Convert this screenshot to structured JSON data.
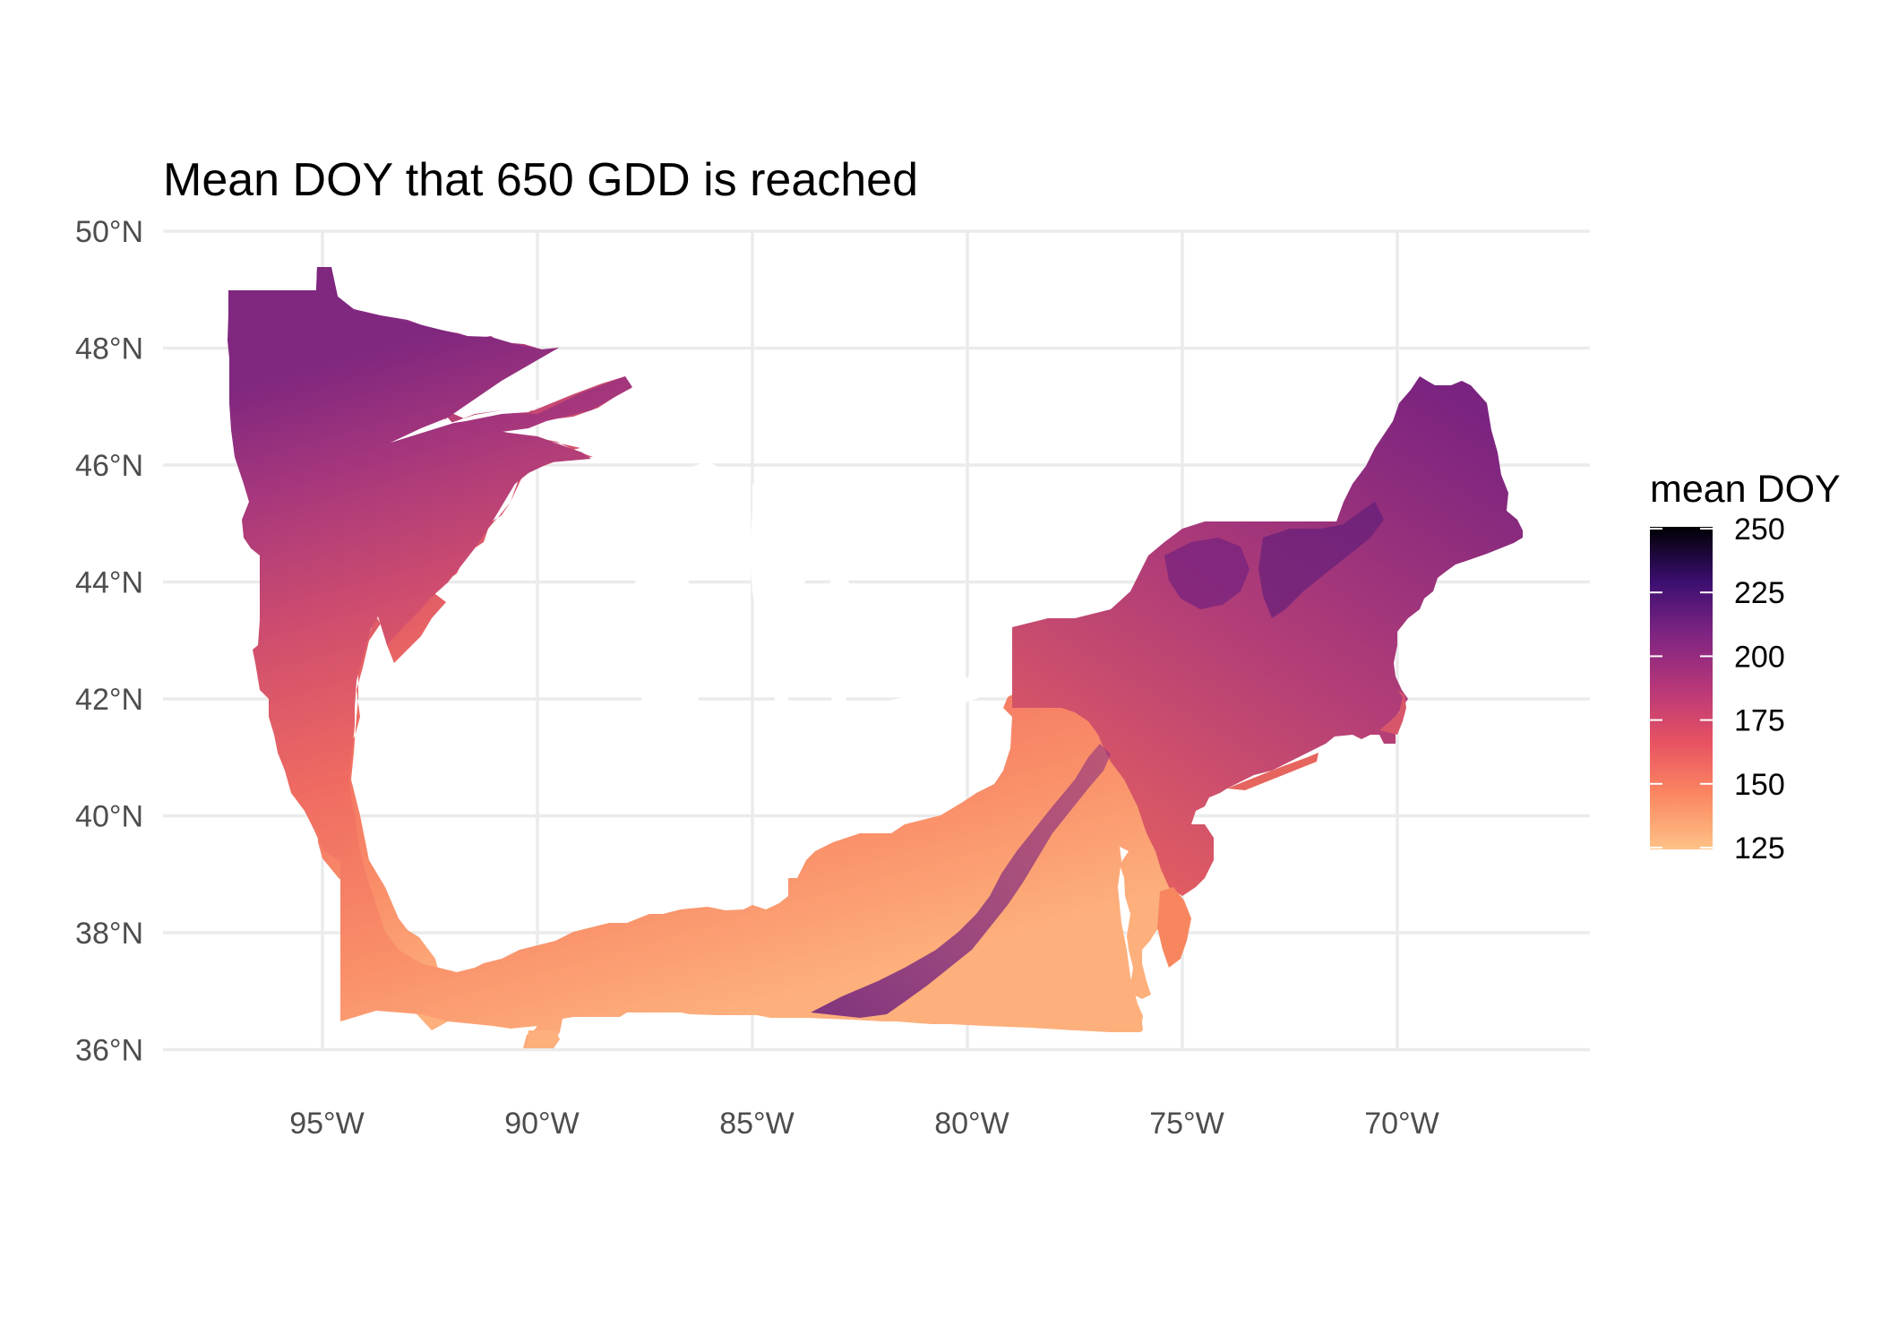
{
  "chart_data": {
    "type": "heatmap",
    "title": "Mean DOY that 650 GDD is reached",
    "xlabel": "",
    "ylabel": "",
    "x_ticks": [
      "95°W",
      "90°W",
      "85°W",
      "80°W",
      "75°W",
      "70°W"
    ],
    "y_ticks": [
      "50°N",
      "48°N",
      "46°N",
      "44°N",
      "42°N",
      "40°N",
      "38°N",
      "36°N"
    ],
    "xlim": [
      -98.8,
      -65.6
    ],
    "ylim": [
      35.5,
      50.2
    ],
    "grid": true,
    "colormap": "magma (reversed)",
    "legend": {
      "title": "mean DOY",
      "placement": "right",
      "ticks": [
        "250",
        "225",
        "200",
        "175",
        "150",
        "125"
      ],
      "range": [
        125,
        250
      ],
      "colors": [
        "#fcfdbf",
        "#fd9a6a",
        "#e85362",
        "#b63679",
        "#711f81",
        "#2d1160",
        "#000004"
      ]
    }
  }
}
